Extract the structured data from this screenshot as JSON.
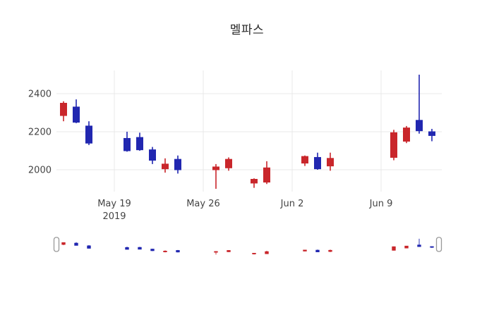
{
  "chart_data": {
    "type": "candlestick",
    "title": "멜파스",
    "legend": false,
    "grid": true,
    "rangeslider": true,
    "increasing_color": "#c9262b",
    "decreasing_color": "#2127b0",
    "grid_color": "#e8e8e8",
    "axis_text_color": "#444444",
    "title_color": "#2a2a2a",
    "handle_border_color": "#999999",
    "y_ticks": [
      2400,
      2200,
      2000
    ],
    "ylim": [
      1885,
      2522
    ],
    "x_ticks": [
      {
        "date": "2019-05-19",
        "label": "May 19",
        "sublabel": "2019"
      },
      {
        "date": "2019-05-26",
        "label": "May 26",
        "sublabel": ""
      },
      {
        "date": "2019-06-02",
        "label": "Jun 2",
        "sublabel": ""
      },
      {
        "date": "2019-06-09",
        "label": "Jun 9",
        "sublabel": ""
      }
    ],
    "candles": [
      {
        "date": "2019-05-15",
        "open": 2285,
        "high": 2360,
        "low": 2255,
        "close": 2350
      },
      {
        "date": "2019-05-16",
        "open": 2330,
        "high": 2370,
        "low": 2245,
        "close": 2250
      },
      {
        "date": "2019-05-17",
        "open": 2230,
        "high": 2255,
        "low": 2130,
        "close": 2140
      },
      {
        "date": "2019-05-20",
        "open": 2165,
        "high": 2200,
        "low": 2095,
        "close": 2100
      },
      {
        "date": "2019-05-21",
        "open": 2170,
        "high": 2195,
        "low": 2100,
        "close": 2105
      },
      {
        "date": "2019-05-22",
        "open": 2105,
        "high": 2120,
        "low": 2030,
        "close": 2050
      },
      {
        "date": "2019-05-23",
        "open": 2005,
        "high": 2060,
        "low": 1985,
        "close": 2030
      },
      {
        "date": "2019-05-24",
        "open": 2055,
        "high": 2075,
        "low": 1980,
        "close": 2000
      },
      {
        "date": "2019-05-27",
        "open": 2000,
        "high": 2030,
        "low": 1900,
        "close": 2015
      },
      {
        "date": "2019-05-28",
        "open": 2010,
        "high": 2065,
        "low": 1995,
        "close": 2055
      },
      {
        "date": "2019-05-30",
        "open": 1930,
        "high": 1955,
        "low": 1905,
        "close": 1950
      },
      {
        "date": "2019-05-31",
        "open": 1935,
        "high": 2045,
        "low": 1925,
        "close": 2010
      },
      {
        "date": "2019-06-03",
        "open": 2035,
        "high": 2075,
        "low": 2020,
        "close": 2070
      },
      {
        "date": "2019-06-04",
        "open": 2065,
        "high": 2090,
        "low": 2000,
        "close": 2005
      },
      {
        "date": "2019-06-05",
        "open": 2020,
        "high": 2090,
        "low": 1995,
        "close": 2060
      },
      {
        "date": "2019-06-10",
        "open": 2065,
        "high": 2210,
        "low": 2050,
        "close": 2195
      },
      {
        "date": "2019-06-11",
        "open": 2150,
        "high": 2230,
        "low": 2140,
        "close": 2220
      },
      {
        "date": "2019-06-12",
        "open": 2260,
        "high": 2500,
        "low": 2190,
        "close": 2205
      },
      {
        "date": "2019-06-13",
        "open": 2200,
        "high": 2215,
        "low": 2150,
        "close": 2180
      }
    ]
  }
}
